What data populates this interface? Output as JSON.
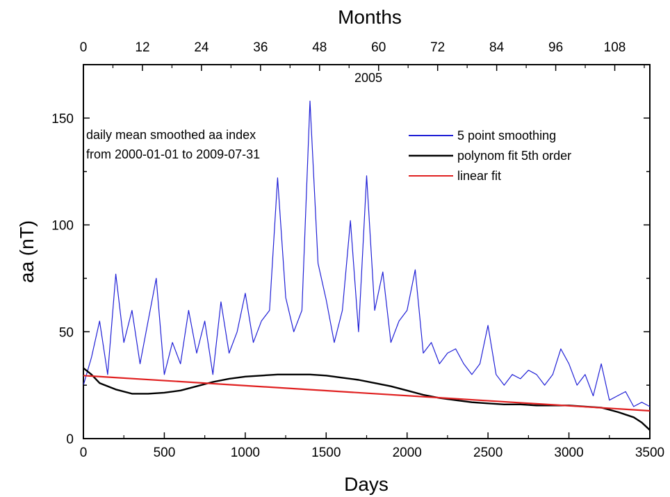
{
  "chart_data": {
    "type": "line",
    "xlabel": "Days",
    "ylabel": "aa (nT)",
    "top_axis_label": "Months",
    "xlim": [
      0,
      3500
    ],
    "ylim": [
      0,
      175
    ],
    "x_ticks": [
      0,
      500,
      1000,
      1500,
      2000,
      2500,
      3000,
      3500
    ],
    "y_ticks": [
      0,
      50,
      100,
      150
    ],
    "top_ticks": [
      0,
      12,
      24,
      36,
      48,
      60,
      72,
      84,
      96,
      108
    ],
    "days_per_month": 30.4,
    "annotation_year": "2005",
    "annotation_text": [
      "daily mean smoothed aa index",
      "from 2000-01-01 to 2009-07-31"
    ],
    "grid": false,
    "legend_position": "top-right",
    "series": [
      {
        "name": "5 point smoothing",
        "color": "#1f1fd6",
        "x": [
          0,
          50,
          100,
          150,
          200,
          250,
          300,
          350,
          400,
          450,
          500,
          550,
          600,
          650,
          700,
          750,
          800,
          850,
          900,
          950,
          1000,
          1050,
          1100,
          1150,
          1200,
          1250,
          1300,
          1350,
          1400,
          1450,
          1500,
          1550,
          1600,
          1650,
          1700,
          1750,
          1800,
          1850,
          1900,
          1950,
          2000,
          2050,
          2100,
          2150,
          2200,
          2250,
          2300,
          2350,
          2400,
          2450,
          2500,
          2550,
          2600,
          2650,
          2700,
          2750,
          2800,
          2850,
          2900,
          2950,
          3000,
          3050,
          3100,
          3150,
          3200,
          3250,
          3300,
          3350,
          3400,
          3450,
          3500
        ],
        "values": [
          25,
          38,
          55,
          30,
          77,
          45,
          60,
          35,
          55,
          75,
          30,
          45,
          35,
          60,
          40,
          55,
          30,
          64,
          40,
          50,
          68,
          45,
          55,
          60,
          122,
          66,
          50,
          60,
          158,
          82,
          65,
          45,
          60,
          102,
          50,
          123,
          60,
          78,
          45,
          55,
          60,
          79,
          40,
          45,
          35,
          40,
          42,
          35,
          30,
          35,
          53,
          30,
          25,
          30,
          28,
          32,
          30,
          25,
          30,
          42,
          35,
          25,
          30,
          20,
          35,
          18,
          20,
          22,
          15,
          17,
          15
        ]
      },
      {
        "name": "polynom fit 5th order",
        "color": "#000000",
        "x": [
          0,
          50,
          100,
          200,
          300,
          400,
          500,
          600,
          700,
          800,
          900,
          1000,
          1100,
          1200,
          1300,
          1400,
          1500,
          1600,
          1700,
          1800,
          1900,
          2000,
          2100,
          2200,
          2300,
          2400,
          2500,
          2600,
          2700,
          2800,
          2900,
          3000,
          3100,
          3200,
          3300,
          3400,
          3450,
          3500
        ],
        "values": [
          33,
          30,
          26,
          23,
          21,
          21,
          21.5,
          22.5,
          24.5,
          26.5,
          28,
          29,
          29.5,
          30,
          30,
          30,
          29.5,
          28.5,
          27.5,
          26,
          24.5,
          22.5,
          20.5,
          19,
          18,
          17,
          16.5,
          16,
          16,
          15.5,
          15.5,
          15.5,
          15,
          14.5,
          12.5,
          10,
          7.5,
          4
        ]
      },
      {
        "name": "linear fit",
        "color": "#e02020",
        "x": [
          0,
          3500
        ],
        "values": [
          29.5,
          13
        ]
      }
    ]
  }
}
